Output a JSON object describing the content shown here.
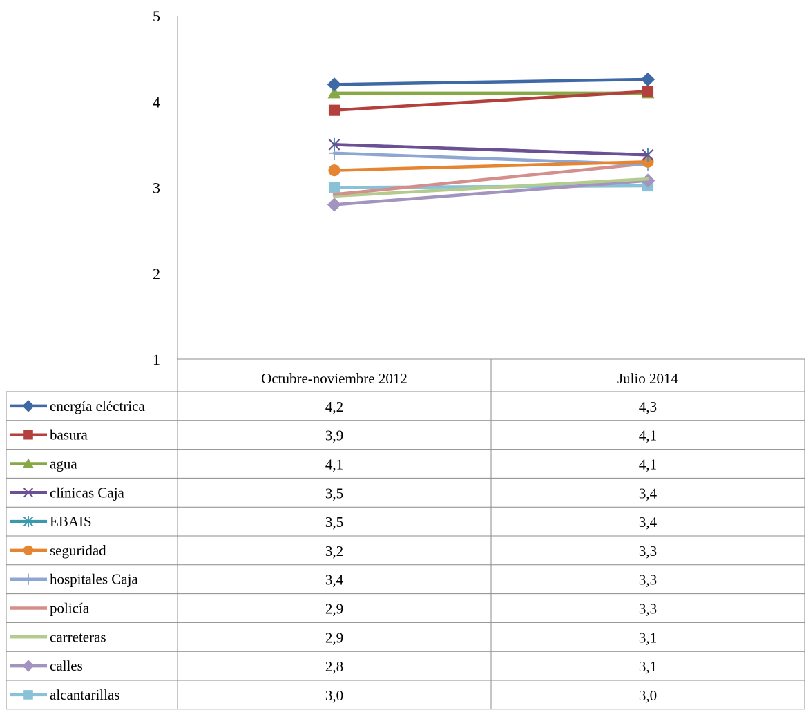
{
  "chart_data": {
    "type": "line",
    "title": "",
    "xlabel": "",
    "ylabel": "",
    "ylim": [
      1,
      5
    ],
    "yticks": [
      "1",
      "2",
      "3",
      "4",
      "5"
    ],
    "grid": false,
    "legend": "data-table-below",
    "categories": [
      "Octubre-noviembre 2012",
      "Julio 2014"
    ],
    "series": [
      {
        "name": "energía eléctrica",
        "marker": "diamond",
        "color": "#3e69a5",
        "values": [
          4.2,
          4.26
        ],
        "labels": [
          "4,2",
          "4,3"
        ]
      },
      {
        "name": "basura",
        "marker": "square",
        "color": "#b3403d",
        "values": [
          3.9,
          4.12
        ],
        "labels": [
          "3,9",
          "4,1"
        ]
      },
      {
        "name": "agua",
        "marker": "triangle",
        "color": "#86a845",
        "values": [
          4.1,
          4.1
        ],
        "labels": [
          "4,1",
          "4,1"
        ]
      },
      {
        "name": "clínicas Caja",
        "marker": "x",
        "color": "#6d4f94",
        "values": [
          3.5,
          3.38
        ],
        "labels": [
          "3,5",
          "3,4"
        ]
      },
      {
        "name": "EBAIS",
        "marker": "star",
        "color": "#3c98ad",
        "values": [
          3.5,
          3.38
        ],
        "labels": [
          "3,5",
          "3,4"
        ]
      },
      {
        "name": "seguridad",
        "marker": "circle",
        "color": "#e58431",
        "values": [
          3.2,
          3.3
        ],
        "labels": [
          "3,2",
          "3,3"
        ]
      },
      {
        "name": "hospitales Caja",
        "marker": "plus",
        "color": "#8ea6d2",
        "values": [
          3.4,
          3.27
        ],
        "labels": [
          "3,4",
          "3,3"
        ]
      },
      {
        "name": "policía",
        "marker": "none",
        "color": "#d48f8d",
        "values": [
          2.92,
          3.28
        ],
        "labels": [
          "2,9",
          "3,3"
        ]
      },
      {
        "name": "carreteras",
        "marker": "none",
        "color": "#b3cb8d",
        "values": [
          2.9,
          3.1
        ],
        "labels": [
          "2,9",
          "3,1"
        ]
      },
      {
        "name": "calles",
        "marker": "diamond",
        "color": "#a393bf",
        "values": [
          2.8,
          3.08
        ],
        "labels": [
          "2,8",
          "3,1"
        ]
      },
      {
        "name": "alcantarillas",
        "marker": "square",
        "color": "#89c2d7",
        "values": [
          3.0,
          3.02
        ],
        "labels": [
          "3,0",
          "3,0"
        ]
      }
    ]
  }
}
